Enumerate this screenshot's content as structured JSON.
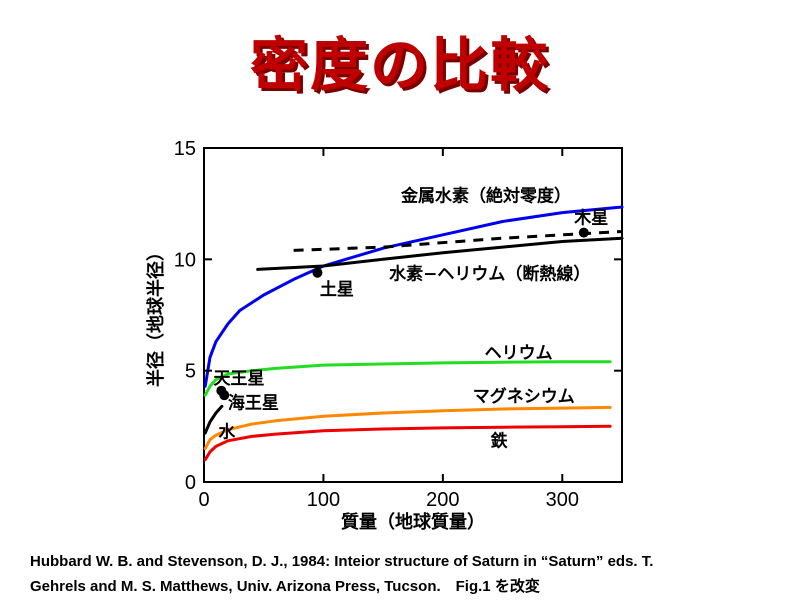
{
  "title": "密度の比較",
  "caption": {
    "line1": "Hubbard W. B. and Stevenson, D. J., 1984: Inteior structure of Saturn in “Saturn” eds. T.",
    "line2": "Gehrels and M. S. Matthews, Univ. Arizona Press, Tucson.　Fig.1 を改変"
  },
  "chart_data": {
    "type": "line",
    "xlabel": "質量（地球質量）",
    "ylabel": "半径（地球半径）",
    "xlim": [
      0,
      350
    ],
    "ylim": [
      0,
      15
    ],
    "xticks": [
      "0",
      "100",
      "200",
      "300"
    ],
    "yticks": [
      "0",
      "5",
      "10",
      "15"
    ],
    "grid": false,
    "series": [
      {
        "name": "金属水素（絶対零度）",
        "color": "#0000ee",
        "style": "solid",
        "x": [
          1,
          5,
          10,
          20,
          30,
          50,
          75,
          100,
          150,
          200,
          250,
          300,
          350
        ],
        "y": [
          4.3,
          5.6,
          6.3,
          7.1,
          7.7,
          8.4,
          9.1,
          9.7,
          10.5,
          11.1,
          11.7,
          12.1,
          12.35
        ]
      },
      {
        "name": "水素-ヘリウム（断熱線）",
        "color": "#000000",
        "style": "solid",
        "x": [
          45,
          100,
          150,
          200,
          250,
          300,
          350
        ],
        "y": [
          9.55,
          9.7,
          10.0,
          10.3,
          10.55,
          10.8,
          10.95
        ]
      },
      {
        "name": "",
        "color": "#000000",
        "style": "dashed",
        "x": [
          75,
          150,
          250,
          350
        ],
        "y": [
          10.4,
          10.55,
          10.95,
          11.25
        ]
      },
      {
        "name": "ヘリウム",
        "color": "#22dd22",
        "style": "solid",
        "x": [
          1,
          5,
          10,
          20,
          40,
          60,
          100,
          150,
          200,
          250,
          300,
          340
        ],
        "y": [
          3.9,
          4.3,
          4.6,
          4.85,
          5.0,
          5.1,
          5.25,
          5.3,
          5.35,
          5.38,
          5.4,
          5.4
        ]
      },
      {
        "name": "マグネシウム",
        "color": "#ff8800",
        "style": "solid",
        "x": [
          1,
          5,
          10,
          20,
          40,
          60,
          100,
          150,
          200,
          250,
          300,
          340
        ],
        "y": [
          1.5,
          1.9,
          2.1,
          2.35,
          2.6,
          2.75,
          2.95,
          3.1,
          3.2,
          3.28,
          3.32,
          3.35
        ]
      },
      {
        "name": "鉄",
        "color": "#ee0000",
        "style": "solid",
        "x": [
          1,
          5,
          10,
          20,
          40,
          60,
          100,
          150,
          200,
          250,
          300,
          340
        ],
        "y": [
          1.0,
          1.35,
          1.6,
          1.85,
          2.05,
          2.15,
          2.3,
          2.38,
          2.43,
          2.46,
          2.48,
          2.5
        ]
      },
      {
        "name": "水",
        "color": "#000000",
        "style": "solid",
        "x": [
          1,
          5,
          10,
          15
        ],
        "y": [
          2.2,
          2.7,
          3.1,
          3.4
        ]
      }
    ],
    "labels": [
      {
        "text": "金属水素（絶対零度）",
        "x": 165,
        "y": 12.6
      },
      {
        "text": "水素−ヘリウム（断熱線）",
        "x": 155,
        "y": 9.1
      },
      {
        "text": "ヘリウム",
        "x": 235,
        "y": 5.55
      },
      {
        "text": "マグネシウム",
        "x": 225,
        "y": 3.6
      },
      {
        "text": "鉄",
        "x": 240,
        "y": 1.6
      },
      {
        "text": "水",
        "x": 12,
        "y": 2.0
      }
    ],
    "planets": [
      {
        "name": "木星",
        "x": 318,
        "y": 11.2,
        "label_x": 310,
        "label_y": 11.6
      },
      {
        "name": "土星",
        "x": 95,
        "y": 9.4,
        "label_x": 97,
        "label_y": 8.4
      },
      {
        "name": "天王星",
        "x": 14.5,
        "y": 4.1,
        "label_x": 8,
        "label_y": 4.4
      },
      {
        "name": "海王星",
        "x": 17,
        "y": 3.9,
        "label_x": 20,
        "label_y": 3.3
      }
    ]
  }
}
